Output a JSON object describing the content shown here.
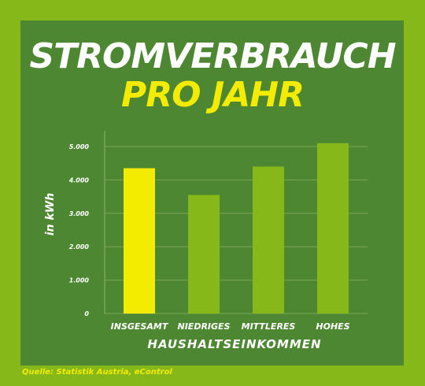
{
  "title": {
    "line1": "STROMVERBRAUCH",
    "line2": "PRO JAHR"
  },
  "source": "Quelle: Statistik Austria, eControl",
  "colors": {
    "outer": "#86b81a",
    "panel": "#4e8732",
    "bar_highlight": "#f3ec00",
    "bar": "#86b81a",
    "text": "#ffffff",
    "accent": "#f3ec00"
  },
  "chart_data": {
    "type": "bar",
    "categories": [
      "INSGESAMT",
      "NIEDRIGES",
      "MITTLERES",
      "HOHES"
    ],
    "values": [
      4350,
      3550,
      4400,
      5100
    ],
    "highlight_index": 0,
    "xlabel": "HAUSHALTSEINKOMMEN",
    "ylabel": "in kWh",
    "ylim": [
      0,
      5000
    ],
    "yticks": [
      0,
      1000,
      2000,
      3000,
      4000,
      5000
    ],
    "ytick_labels": [
      "0",
      "1.000",
      "2.000",
      "3.000",
      "4.000",
      "5.000"
    ],
    "grid": true,
    "legend": "none"
  }
}
